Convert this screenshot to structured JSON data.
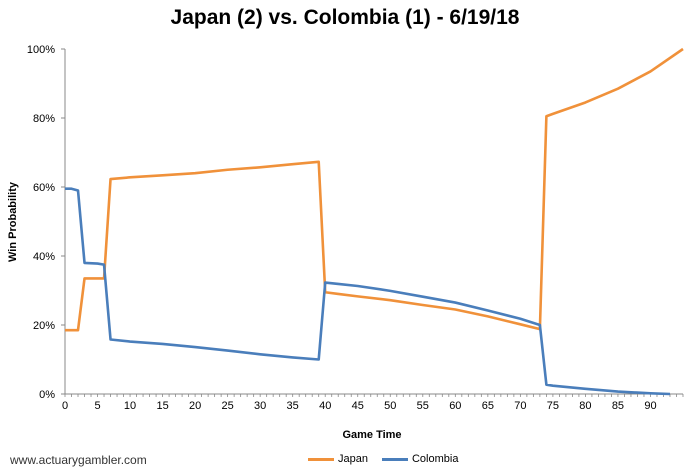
{
  "chart_data": {
    "type": "line",
    "title": "Japan (2) vs. Colombia (1) - 6/19/18",
    "xlabel": "Game Time",
    "ylabel": "Win Probability",
    "xlim": [
      0,
      95
    ],
    "ylim": [
      0,
      100
    ],
    "x_ticks": [
      0,
      5,
      10,
      15,
      20,
      25,
      30,
      35,
      40,
      45,
      50,
      55,
      60,
      65,
      70,
      75,
      80,
      85,
      90
    ],
    "y_ticks": [
      0,
      20,
      40,
      60,
      80,
      100
    ],
    "y_tick_labels": [
      "0%",
      "20%",
      "40%",
      "60%",
      "80%",
      "100%"
    ],
    "grid": false,
    "legend_position": "bottom",
    "series": [
      {
        "name": "Japan",
        "color": "#F0913A",
        "points": [
          [
            0,
            18.5
          ],
          [
            2,
            18.5
          ],
          [
            3,
            33.5
          ],
          [
            5,
            33.5
          ],
          [
            6,
            33.5
          ],
          [
            7,
            62.3
          ],
          [
            10,
            62.8
          ],
          [
            15,
            63.4
          ],
          [
            20,
            64.0
          ],
          [
            25,
            65.0
          ],
          [
            30,
            65.7
          ],
          [
            35,
            66.6
          ],
          [
            39,
            67.3
          ],
          [
            40,
            29.5
          ],
          [
            42,
            29.0
          ],
          [
            45,
            28.3
          ],
          [
            50,
            27.2
          ],
          [
            55,
            25.8
          ],
          [
            60,
            24.5
          ],
          [
            65,
            22.5
          ],
          [
            70,
            20.2
          ],
          [
            73,
            18.8
          ],
          [
            74,
            80.5
          ],
          [
            75,
            81.2
          ],
          [
            80,
            84.5
          ],
          [
            85,
            88.5
          ],
          [
            90,
            93.5
          ],
          [
            95,
            100
          ]
        ]
      },
      {
        "name": "Colombia",
        "color": "#4A7EBB",
        "points": [
          [
            0,
            59.5
          ],
          [
            1,
            59.5
          ],
          [
            2,
            59.0
          ],
          [
            3,
            38.0
          ],
          [
            5,
            37.8
          ],
          [
            6,
            37.5
          ],
          [
            7,
            15.8
          ],
          [
            10,
            15.2
          ],
          [
            15,
            14.5
          ],
          [
            20,
            13.6
          ],
          [
            25,
            12.6
          ],
          [
            30,
            11.5
          ],
          [
            35,
            10.6
          ],
          [
            39,
            10.0
          ],
          [
            40,
            32.3
          ],
          [
            42,
            31.9
          ],
          [
            45,
            31.3
          ],
          [
            50,
            29.9
          ],
          [
            55,
            28.2
          ],
          [
            60,
            26.5
          ],
          [
            65,
            24.2
          ],
          [
            70,
            21.8
          ],
          [
            73,
            20.0
          ],
          [
            74,
            2.7
          ],
          [
            75,
            2.4
          ],
          [
            80,
            1.5
          ],
          [
            85,
            0.7
          ],
          [
            90,
            0.2
          ],
          [
            93,
            0.0
          ]
        ]
      }
    ]
  },
  "footer": {
    "credit": "www.actuarygambler.com"
  },
  "legend": {
    "japan_label": "Japan",
    "colombia_label": "Colombia",
    "japan_color": "#F0913A",
    "colombia_color": "#4A7EBB"
  }
}
